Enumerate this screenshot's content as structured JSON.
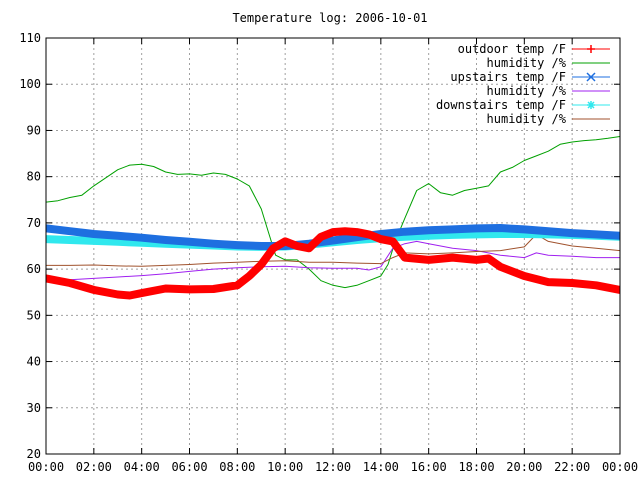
{
  "chart_data": {
    "type": "line",
    "title": "Temperature log: 2006-10-01",
    "xlabel": "",
    "ylabel": "",
    "xlim": [
      0,
      24
    ],
    "ylim": [
      20,
      110
    ],
    "grid": true,
    "legend_position": "top-right",
    "x_ticks": [
      {
        "value": 0,
        "label": "00:00"
      },
      {
        "value": 2,
        "label": "02:00"
      },
      {
        "value": 4,
        "label": "04:00"
      },
      {
        "value": 6,
        "label": "06:00"
      },
      {
        "value": 8,
        "label": "08:00"
      },
      {
        "value": 10,
        "label": "10:00"
      },
      {
        "value": 12,
        "label": "12:00"
      },
      {
        "value": 14,
        "label": "14:00"
      },
      {
        "value": 16,
        "label": "16:00"
      },
      {
        "value": 18,
        "label": "18:00"
      },
      {
        "value": 20,
        "label": "20:00"
      },
      {
        "value": 22,
        "label": "22:00"
      },
      {
        "value": 24,
        "label": "00:00"
      }
    ],
    "y_ticks": [
      {
        "value": 20,
        "label": "20"
      },
      {
        "value": 30,
        "label": "30"
      },
      {
        "value": 40,
        "label": "40"
      },
      {
        "value": 50,
        "label": "50"
      },
      {
        "value": 60,
        "label": "60"
      },
      {
        "value": 70,
        "label": "70"
      },
      {
        "value": 80,
        "label": "80"
      },
      {
        "value": 90,
        "label": "90"
      },
      {
        "value": 100,
        "label": "100"
      },
      {
        "value": 110,
        "label": "110"
      }
    ],
    "series": [
      {
        "name": "outdoor temp /F",
        "color": "#ff0000",
        "style": "thick",
        "marker": "plus",
        "x": [
          0,
          1,
          2,
          3,
          3.5,
          4,
          5,
          6,
          7,
          8,
          8.5,
          9,
          9.5,
          10,
          10.5,
          11,
          11.5,
          12,
          12.5,
          13,
          13.5,
          14,
          14.5,
          15,
          16,
          17,
          18,
          18.5,
          19,
          20,
          21,
          22,
          23,
          24
        ],
        "values": [
          58,
          57,
          55.5,
          54.5,
          54.3,
          54.8,
          55.8,
          55.6,
          55.7,
          56.5,
          58.5,
          61,
          64.5,
          66,
          65,
          64.5,
          67,
          68,
          68.2,
          68,
          67.5,
          66.5,
          66,
          62.5,
          62,
          62.5,
          62,
          62.3,
          60.5,
          58.5,
          57.2,
          57,
          56.5,
          55.5
        ]
      },
      {
        "name": "humidity /%",
        "color": "#00a000",
        "style": "thin",
        "marker": "none",
        "x": [
          0,
          0.5,
          1,
          1.5,
          2,
          3,
          3.5,
          4,
          4.5,
          5,
          5.5,
          6,
          6.5,
          7,
          7.5,
          8,
          8.5,
          9,
          9.3,
          9.6,
          10,
          10.5,
          11,
          11.5,
          12,
          12.5,
          13,
          13.5,
          14,
          14.3,
          14.6,
          15,
          15.5,
          16,
          16.5,
          17,
          17.5,
          18,
          18.5,
          19,
          19.5,
          20,
          20.5,
          21,
          21.5,
          22,
          22.5,
          23,
          23.5,
          24
        ],
        "values": [
          74.5,
          74.8,
          75.5,
          76,
          78,
          81.5,
          82.5,
          82.7,
          82.2,
          81,
          80.5,
          80.6,
          80.3,
          80.8,
          80.5,
          79.5,
          78,
          73,
          68,
          63,
          62,
          62,
          60,
          57.5,
          56.5,
          56,
          56.5,
          57.5,
          58.5,
          61,
          66,
          71,
          77,
          78.5,
          76.5,
          76,
          77,
          77.5,
          78,
          81,
          82,
          83.5,
          84.5,
          85.5,
          87,
          87.5,
          87.8,
          88,
          88.3,
          88.7
        ]
      },
      {
        "name": "upstairs temp /F",
        "color": "#1e6fe0",
        "style": "thick",
        "marker": "cross",
        "x": [
          0,
          1,
          2,
          3,
          4,
          5,
          6,
          7,
          8,
          9,
          10,
          11,
          12,
          13,
          14,
          15,
          16,
          17,
          18,
          19,
          20,
          21,
          22,
          23,
          24
        ],
        "values": [
          68.8,
          68.2,
          67.6,
          67.2,
          66.8,
          66.3,
          65.9,
          65.5,
          65.2,
          65,
          65,
          65.5,
          66.2,
          66.9,
          67.6,
          68.1,
          68.4,
          68.6,
          68.8,
          68.9,
          68.6,
          68.2,
          67.8,
          67.5,
          67.2
        ]
      },
      {
        "name": "humidity /%",
        "color": "#a020f0",
        "style": "thin",
        "marker": "none",
        "x": [
          0,
          1,
          2,
          3,
          4,
          5,
          6,
          7,
          8,
          9,
          10,
          11,
          12,
          13,
          13.5,
          14,
          14.5,
          15,
          15.5,
          16,
          17,
          18,
          19,
          20,
          20.5,
          21,
          22,
          23,
          24
        ],
        "values": [
          57.5,
          57.7,
          58,
          58.3,
          58.6,
          59,
          59.5,
          60,
          60.3,
          60.5,
          60.6,
          60.3,
          60.2,
          60.2,
          59.8,
          60.5,
          64.5,
          65.5,
          66,
          65.5,
          64.5,
          64,
          63,
          62.5,
          63.5,
          63,
          62.8,
          62.5,
          62.5
        ]
      },
      {
        "name": "downstairs temp /F",
        "color": "#30e8ee",
        "style": "thick",
        "marker": "star",
        "x": [
          0,
          1,
          2,
          3,
          4,
          5,
          6,
          7,
          8,
          9,
          10,
          11,
          12,
          13,
          14,
          15,
          16,
          17,
          18,
          19,
          20,
          21,
          22,
          23,
          24
        ],
        "values": [
          66.5,
          66.3,
          66.1,
          65.9,
          65.7,
          65.5,
          65.3,
          65.1,
          64.9,
          64.8,
          64.9,
          65.3,
          65.8,
          66.3,
          66.7,
          67,
          67.2,
          67.4,
          67.5,
          67.6,
          67.6,
          67.5,
          67.4,
          67.2,
          67
        ]
      },
      {
        "name": "humidity /%",
        "color": "#a0522d",
        "style": "thin",
        "marker": "none",
        "x": [
          0,
          1,
          2,
          3,
          4,
          5,
          6,
          7,
          8,
          9,
          10,
          11,
          12,
          13,
          14,
          14.5,
          15,
          16,
          17,
          18,
          19,
          20,
          20.5,
          21,
          22,
          23,
          24
        ],
        "values": [
          60.8,
          60.8,
          60.9,
          60.7,
          60.6,
          60.8,
          61,
          61.3,
          61.5,
          61.7,
          61.8,
          61.5,
          61.5,
          61.3,
          61.2,
          62.5,
          63.5,
          63.3,
          63.5,
          63.8,
          64,
          64.8,
          67.5,
          66,
          65,
          64.5,
          64
        ]
      }
    ]
  }
}
